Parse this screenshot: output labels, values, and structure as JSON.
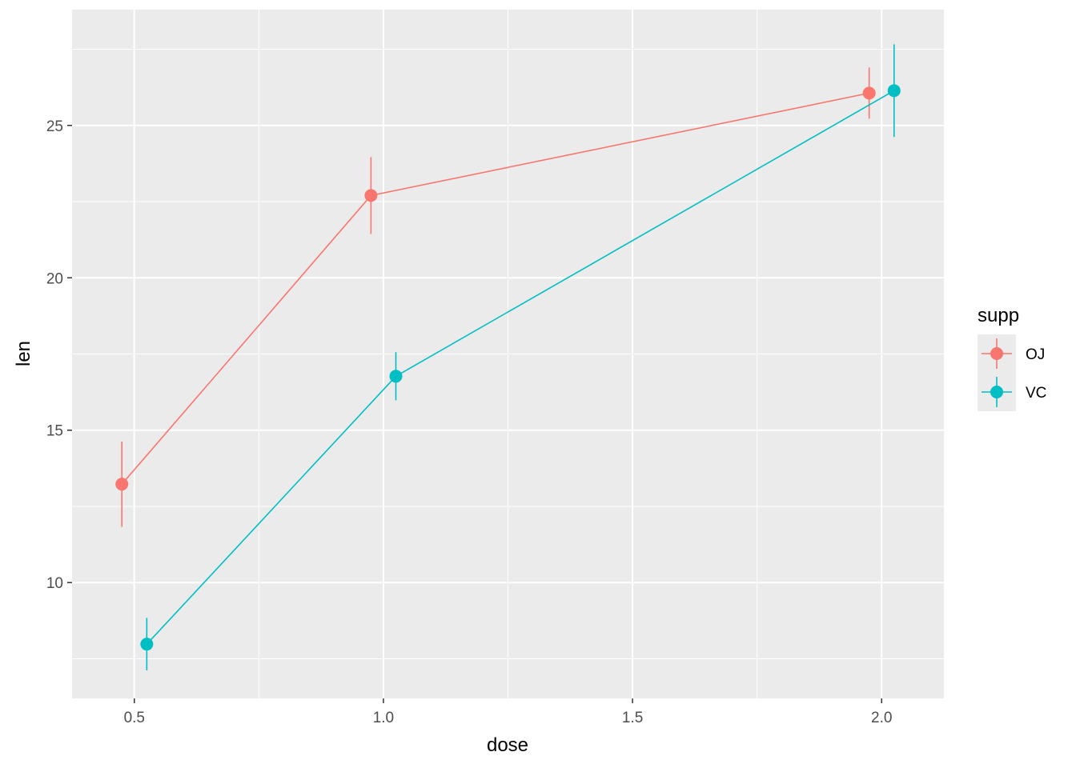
{
  "chart_data": {
    "type": "line",
    "xlabel": "dose",
    "ylabel": "len",
    "xlim": [
      0.375,
      2.125
    ],
    "ylim": [
      6.2,
      28.8
    ],
    "x_ticks": [
      0.5,
      1.0,
      1.5,
      2.0
    ],
    "x_tick_labels": [
      "0.5",
      "1.0",
      "1.5",
      "2.0"
    ],
    "y_ticks": [
      10,
      15,
      20,
      25
    ],
    "y_tick_labels": [
      "10",
      "15",
      "20",
      "25"
    ],
    "grid": true,
    "dodge": 0.05,
    "legend": {
      "title": "supp",
      "position": "right"
    },
    "series": [
      {
        "name": "OJ",
        "color": "#F8766D",
        "x": [
          0.5,
          1.0,
          2.0
        ],
        "values": [
          13.23,
          22.7,
          26.06
        ],
        "error_low": [
          11.83,
          21.44,
          25.22
        ],
        "error_high": [
          14.63,
          23.96,
          26.9
        ]
      },
      {
        "name": "VC",
        "color": "#00BFC4",
        "x": [
          0.5,
          1.0,
          2.0
        ],
        "values": [
          7.98,
          16.77,
          26.14
        ],
        "error_low": [
          7.12,
          15.98,
          24.62
        ],
        "error_high": [
          8.84,
          17.56,
          27.66
        ]
      }
    ]
  }
}
